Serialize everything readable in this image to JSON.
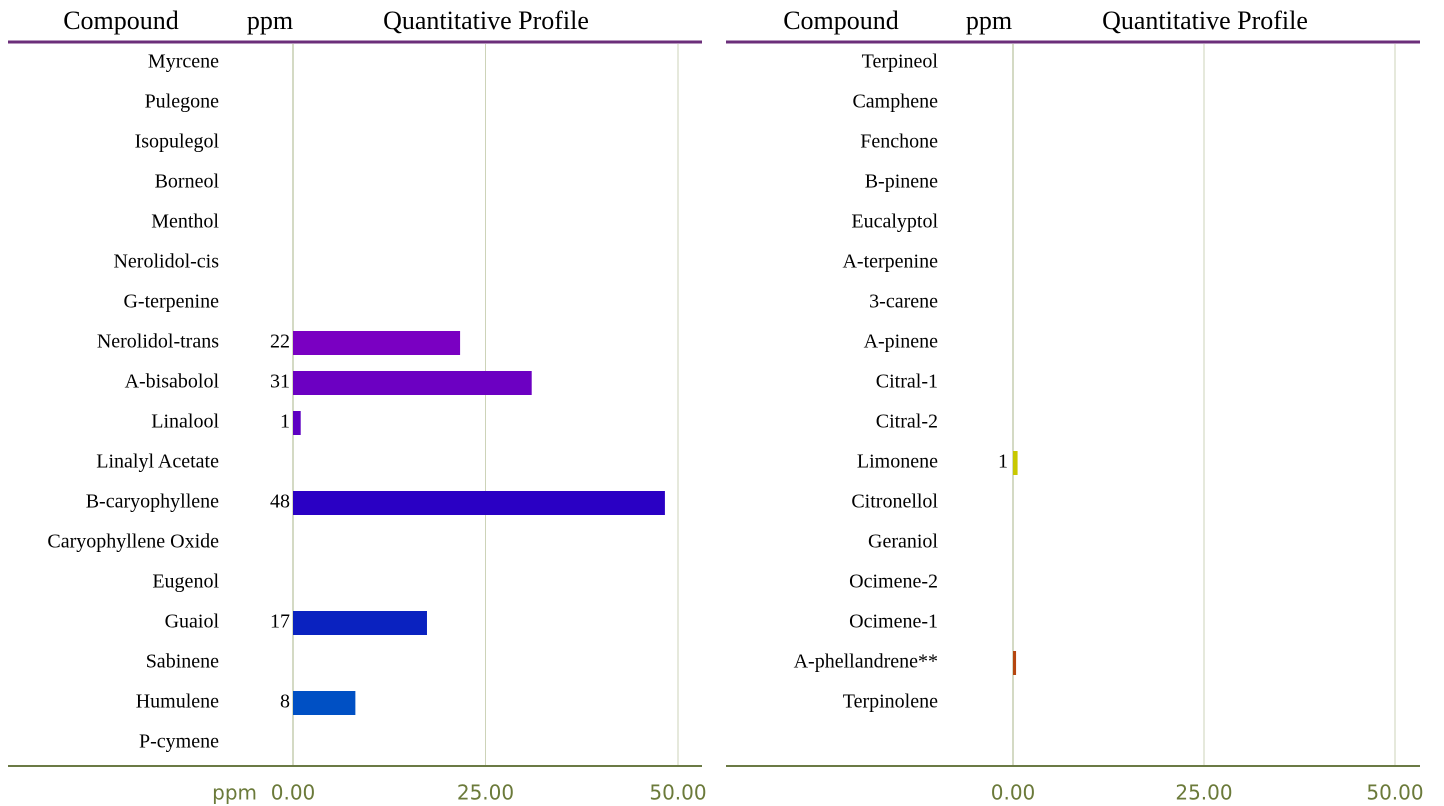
{
  "chart_data": [
    {
      "type": "bar",
      "orientation": "horizontal",
      "columns": [
        "Compound",
        "ppm",
        "Quantitative Profile"
      ],
      "x_label": "ppm",
      "categories": [
        "Myrcene",
        "Pulegone",
        "Isopulegol",
        "Borneol",
        "Menthol",
        "Nerolidol-cis",
        "G-terpenine",
        "Nerolidol-trans",
        "A-bisabolol",
        "Linalool",
        "Linalyl Acetate",
        "B-caryophyllene",
        "Caryophyllene Oxide",
        "Eugenol",
        "Guaiol",
        "Sabinene",
        "Humulene",
        "P-cymene"
      ],
      "values": [
        null,
        null,
        null,
        null,
        null,
        null,
        null,
        21.7,
        31.0,
        1.0,
        null,
        48.3,
        null,
        null,
        17.4,
        null,
        8.1,
        null
      ],
      "value_labels": [
        null,
        null,
        null,
        null,
        null,
        null,
        null,
        "22",
        "31",
        "1",
        null,
        "48",
        null,
        null,
        "17",
        null,
        "8",
        null
      ],
      "colors": [
        null,
        null,
        null,
        null,
        null,
        null,
        null,
        "#7a00c2",
        "#6c00c2",
        "#5e00c2",
        null,
        "#2a00c4",
        null,
        null,
        "#0a22c0",
        null,
        "#0050c4",
        null
      ],
      "xlim": [
        0,
        50
      ],
      "xticks": [
        {
          "value": 0,
          "label": "0.00"
        },
        {
          "value": 25,
          "label": "25.00"
        },
        {
          "value": 50,
          "label": "50.00"
        }
      ],
      "grid": true
    },
    {
      "type": "bar",
      "orientation": "horizontal",
      "columns": [
        "Compound",
        "ppm",
        "Quantitative Profile"
      ],
      "categories": [
        "Terpineol",
        "Camphene",
        "Fenchone",
        "B-pinene",
        "Eucalyptol",
        "A-terpenine",
        "3-carene",
        "A-pinene",
        "Citral-1",
        "Citral-2",
        "Limonene",
        "Citronellol",
        "Geraniol",
        "Ocimene-2",
        "Ocimene-1",
        "A-phellandrene**",
        "Terpinolene"
      ],
      "values": [
        null,
        null,
        null,
        null,
        null,
        null,
        null,
        null,
        null,
        null,
        0.6,
        null,
        null,
        null,
        null,
        0.4,
        null
      ],
      "value_labels": [
        null,
        null,
        null,
        null,
        null,
        null,
        null,
        null,
        null,
        null,
        "1",
        null,
        null,
        null,
        null,
        null,
        null
      ],
      "colors": [
        null,
        null,
        null,
        null,
        null,
        null,
        null,
        null,
        null,
        null,
        "#c8c800",
        null,
        null,
        null,
        null,
        "#b5460f",
        null
      ],
      "xlim": [
        0,
        50
      ],
      "xticks": [
        {
          "value": 0,
          "label": "0.00"
        },
        {
          "value": 25,
          "label": "25.00"
        },
        {
          "value": 50,
          "label": "50.00"
        }
      ],
      "grid": true
    }
  ]
}
